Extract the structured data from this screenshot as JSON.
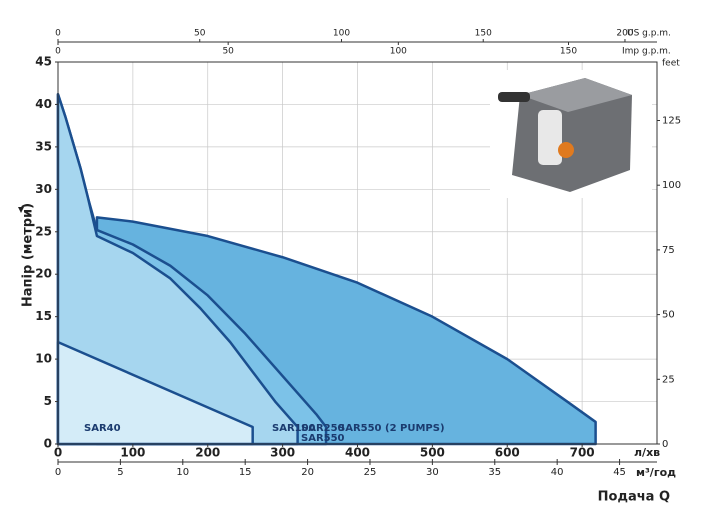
{
  "chart_data": {
    "type": "area",
    "y_label": "Напір (метри)",
    "x_unit_label": "л/хв",
    "x2_unit_label": "м³/год",
    "x_title": "Подача Q",
    "x3_unit_label": "US g.p.m.",
    "x4_unit_label": "Imp g.p.m.",
    "y2_unit_label": "feet",
    "xlim": [
      0,
      800
    ],
    "xticks": [
      0,
      100,
      200,
      300,
      400,
      500,
      600,
      700
    ],
    "ylim": [
      0,
      45
    ],
    "yticks": [
      0,
      5,
      10,
      15,
      20,
      25,
      30,
      35,
      40,
      45
    ],
    "x2lim": [
      0,
      48
    ],
    "x2ticks": [
      0,
      5,
      10,
      15,
      20,
      25,
      30,
      35,
      40,
      45
    ],
    "x3lim": [
      0,
      211.3
    ],
    "x3ticks": [
      0,
      50,
      100,
      150,
      200
    ],
    "x4lim": [
      0,
      176
    ],
    "x4ticks": [
      0,
      50,
      100,
      150
    ],
    "y2lim": [
      0,
      147.6
    ],
    "y2ticks": [
      0,
      25,
      50,
      75,
      100,
      125
    ],
    "grid": true,
    "outline_color": "#1b4f8f",
    "series": [
      {
        "name": "SAR550 (2 PUMPS)",
        "color": "#66b3df",
        "x": [
          52,
          100,
          200,
          300,
          400,
          500,
          600,
          680,
          718,
          718
        ],
        "values": [
          26.7,
          26.2,
          24.5,
          22,
          19,
          15,
          10,
          5,
          2.6,
          0
        ]
      },
      {
        "name": "SAR250",
        "color": "#7cc2e8",
        "x": [
          0,
          10,
          20,
          30,
          40,
          52,
          100,
          150,
          200,
          250,
          290,
          320,
          345,
          358,
          358
        ],
        "values": [
          41.2,
          38.5,
          35.5,
          32.5,
          29,
          25.2,
          23.5,
          21,
          17.5,
          13,
          9,
          6,
          3.5,
          2,
          0
        ]
      },
      {
        "name": "SAR100",
        "color": "#a6d6ef",
        "x": [
          0,
          10,
          20,
          30,
          40,
          52,
          100,
          150,
          190,
          230,
          260,
          290,
          310,
          320,
          320
        ],
        "values": [
          41.2,
          38.5,
          35.5,
          32.5,
          29,
          24.5,
          22.5,
          19.5,
          16,
          12,
          8.5,
          5,
          3,
          2,
          0
        ]
      },
      {
        "name": "SAR40",
        "color": "#d4ecf8",
        "x": [
          0,
          260,
          260
        ],
        "values": [
          12,
          2,
          0
        ]
      }
    ],
    "extra_label": "SAR550"
  }
}
